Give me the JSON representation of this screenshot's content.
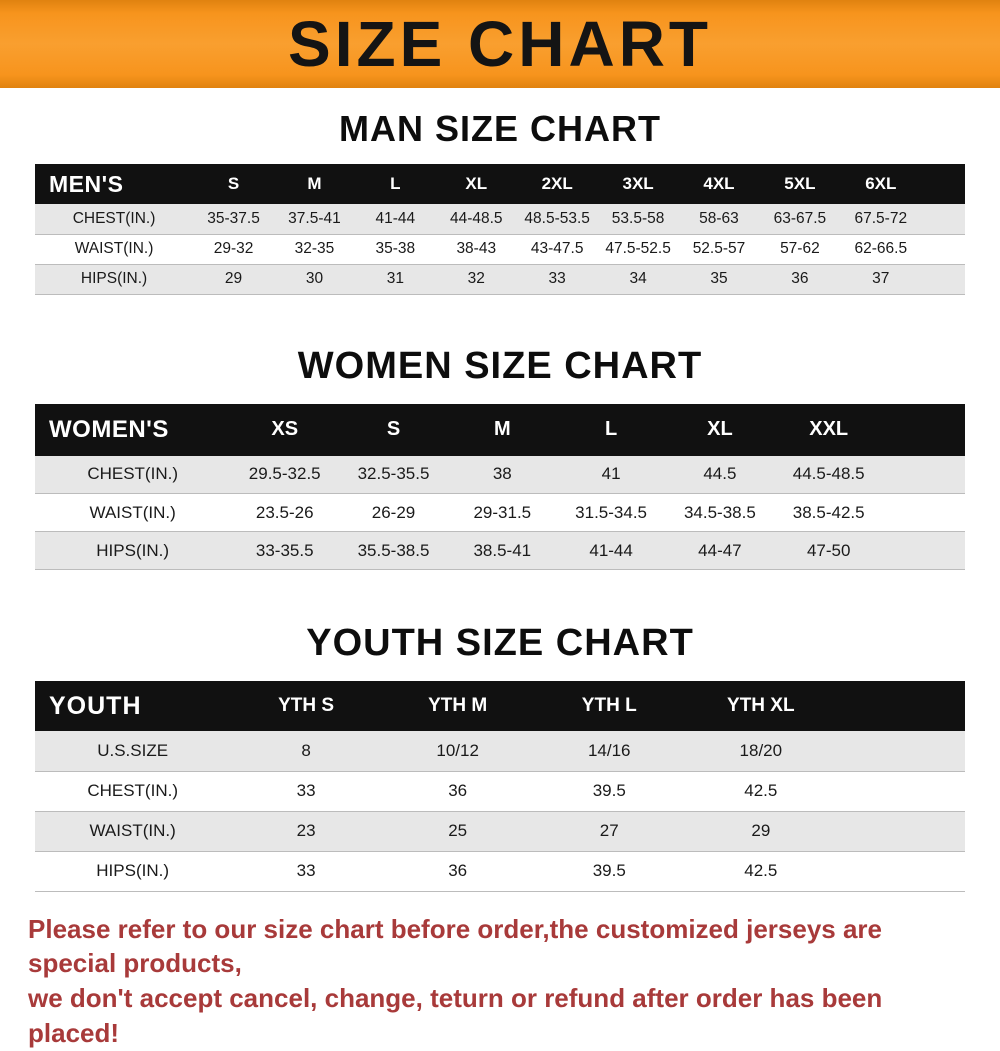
{
  "banner": {
    "title": "SIZE CHART"
  },
  "colors": {
    "banner_bg": "#f7941d",
    "header_bg": "#111111",
    "row_alt": "#e7e7e7",
    "footer_text": "#a83a3a"
  },
  "men": {
    "heading": "MAN SIZE CHART",
    "header": [
      "MEN'S",
      "S",
      "M",
      "L",
      "XL",
      "2XL",
      "3XL",
      "4XL",
      "5XL",
      "6XL"
    ],
    "rows": [
      [
        "CHEST(IN.)",
        "35-37.5",
        "37.5-41",
        "41-44",
        "44-48.5",
        "48.5-53.5",
        "53.5-58",
        "58-63",
        "63-67.5",
        "67.5-72"
      ],
      [
        "WAIST(IN.)",
        "29-32",
        "32-35",
        "35-38",
        "38-43",
        "43-47.5",
        "47.5-52.5",
        "52.5-57",
        "57-62",
        "62-66.5"
      ],
      [
        "HIPS(IN.)",
        "29",
        "30",
        "31",
        "32",
        "33",
        "34",
        "35",
        "36",
        "37"
      ]
    ]
  },
  "women": {
    "heading": "WOMEN SIZE CHART",
    "header": [
      "WOMEN'S",
      "XS",
      "S",
      "M",
      "L",
      "XL",
      "XXL"
    ],
    "rows": [
      [
        "CHEST(IN.)",
        "29.5-32.5",
        "32.5-35.5",
        "38",
        "41",
        "44.5",
        "44.5-48.5"
      ],
      [
        "WAIST(IN.)",
        "23.5-26",
        "26-29",
        "29-31.5",
        "31.5-34.5",
        "34.5-38.5",
        "38.5-42.5"
      ],
      [
        "HIPS(IN.)",
        "33-35.5",
        "35.5-38.5",
        "38.5-41",
        "41-44",
        "44-47",
        "47-50"
      ]
    ]
  },
  "youth": {
    "heading": "YOUTH SIZE CHART",
    "header": [
      "YOUTH",
      "YTH S",
      "YTH M",
      "YTH L",
      "YTH XL"
    ],
    "rows": [
      [
        "U.S.SIZE",
        "8",
        "10/12",
        "14/16",
        "18/20"
      ],
      [
        "CHEST(IN.)",
        "33",
        "36",
        "39.5",
        "42.5"
      ],
      [
        "WAIST(IN.)",
        "23",
        "25",
        "27",
        "29"
      ],
      [
        "HIPS(IN.)",
        "33",
        "36",
        "39.5",
        "42.5"
      ]
    ]
  },
  "footer": {
    "line1": "Please refer to our size chart before order,the customized jerseys are special products,",
    "line2": "we don't accept cancel, change, teturn or refund after order has been placed!"
  }
}
